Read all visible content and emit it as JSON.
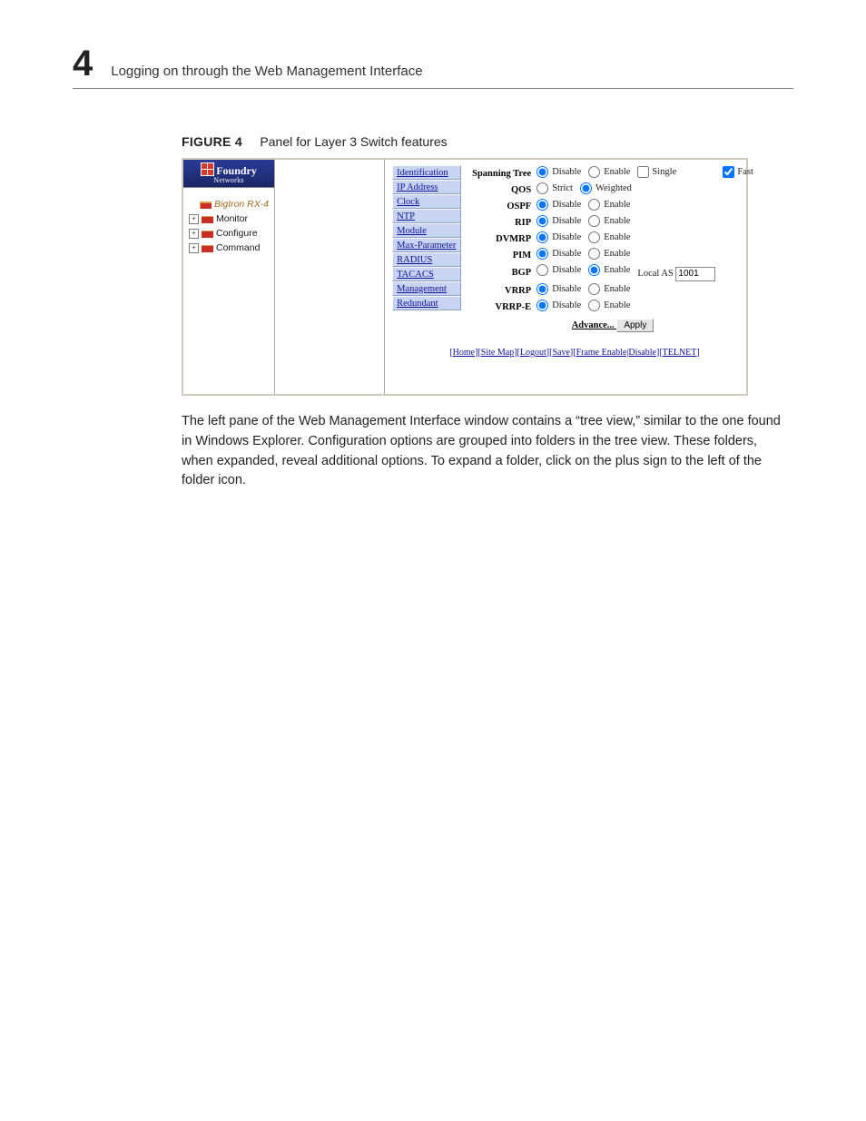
{
  "page_header": {
    "chapter_number": "4",
    "title": "Logging on through the Web Management Interface"
  },
  "figure_caption": {
    "label": "FIGURE 4",
    "text": "Panel for Layer 3 Switch features"
  },
  "brand": {
    "name": "Foundry",
    "sub": "Networks"
  },
  "tree": {
    "root": "BigIron RX-4",
    "items": [
      "Monitor",
      "Configure",
      "Command"
    ]
  },
  "nav_links": [
    "Identification",
    "IP Address",
    "Clock",
    "NTP",
    "Module",
    "Max-Parameter",
    "RADIUS",
    "TACACS",
    "Management",
    "Redundant"
  ],
  "config": [
    {
      "label": "Spanning Tree",
      "controls": [
        {
          "type": "radio",
          "name": "st",
          "text": "Disable",
          "checked": true
        },
        {
          "type": "radio",
          "name": "st",
          "text": "Enable",
          "checked": false
        },
        {
          "type": "checkbox",
          "text": "Single",
          "checked": false
        }
      ],
      "right": {
        "type": "checkbox",
        "text": "Fast",
        "checked": true
      }
    },
    {
      "label": "QOS",
      "controls": [
        {
          "type": "radio",
          "name": "qos",
          "text": "Strict",
          "checked": false
        },
        {
          "type": "radio",
          "name": "qos",
          "text": "Weighted",
          "checked": true
        }
      ]
    },
    {
      "label": "OSPF",
      "controls": [
        {
          "type": "radio",
          "name": "ospf",
          "text": "Disable",
          "checked": true
        },
        {
          "type": "radio",
          "name": "ospf",
          "text": "Enable",
          "checked": false
        }
      ]
    },
    {
      "label": "RIP",
      "controls": [
        {
          "type": "radio",
          "name": "rip",
          "text": "Disable",
          "checked": true
        },
        {
          "type": "radio",
          "name": "rip",
          "text": "Enable",
          "checked": false
        }
      ]
    },
    {
      "label": "DVMRP",
      "controls": [
        {
          "type": "radio",
          "name": "dvmrp",
          "text": "Disable",
          "checked": true
        },
        {
          "type": "radio",
          "name": "dvmrp",
          "text": "Enable",
          "checked": false
        }
      ]
    },
    {
      "label": "PIM",
      "controls": [
        {
          "type": "radio",
          "name": "pim",
          "text": "Disable",
          "checked": true
        },
        {
          "type": "radio",
          "name": "pim",
          "text": "Enable",
          "checked": false
        }
      ]
    },
    {
      "label": "BGP",
      "controls": [
        {
          "type": "radio",
          "name": "bgp",
          "text": "Disable",
          "checked": false
        },
        {
          "type": "radio",
          "name": "bgp",
          "text": "Enable",
          "checked": true
        },
        {
          "type": "text-input",
          "prefix": "Local AS",
          "value": "1001"
        }
      ]
    },
    {
      "label": "VRRP",
      "controls": [
        {
          "type": "radio",
          "name": "vrrp",
          "text": "Disable",
          "checked": true
        },
        {
          "type": "radio",
          "name": "vrrp",
          "text": "Enable",
          "checked": false
        }
      ]
    },
    {
      "label": "VRRP-E",
      "controls": [
        {
          "type": "radio",
          "name": "vrrpe",
          "text": "Disable",
          "checked": true
        },
        {
          "type": "radio",
          "name": "vrrpe",
          "text": "Enable",
          "checked": false
        }
      ]
    }
  ],
  "advance_label": "Advance...",
  "apply_label": "Apply",
  "footer_links": [
    "Home",
    "Site Map",
    "Logout",
    "Save",
    "Frame Enable|Disable",
    "TELNET"
  ],
  "body_paragraph": "The left pane of the Web Management Interface window contains a “tree view,” similar to the one found in Windows Explorer. Configuration options are grouped into folders in the tree view. These folders, when expanded, reveal additional options. To expand a folder, click on the plus sign to the left of the folder icon."
}
